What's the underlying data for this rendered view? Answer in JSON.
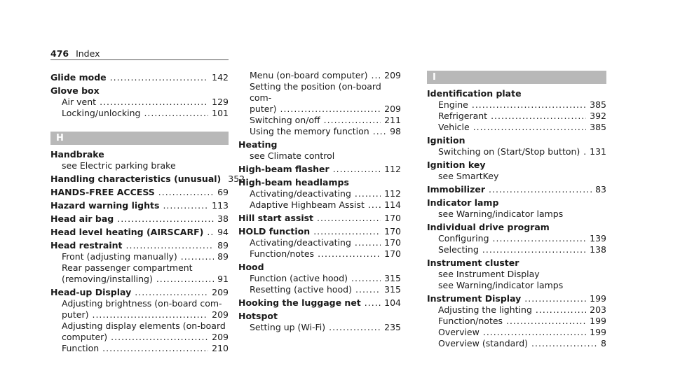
{
  "header": {
    "page_number": "476",
    "label": "Index"
  },
  "col1": {
    "glide_mode": {
      "text": "Glide mode",
      "page": "142"
    },
    "glove_box": {
      "text": "Glove box",
      "subs": [
        {
          "text": "Air vent",
          "page": "129"
        },
        {
          "text": "Locking/unlocking",
          "page": "101"
        }
      ]
    },
    "letter": "H",
    "handbrake": {
      "text": "Handbrake",
      "see": "see Electric parking brake"
    },
    "handling": {
      "text": "Handling characteristics (unusual)",
      "page": "352"
    },
    "handsfree": {
      "text": "HANDS-FREE ACCESS",
      "page": "69"
    },
    "hazard": {
      "text": "Hazard warning lights",
      "page": "113"
    },
    "head_air_bag": {
      "text": "Head air bag",
      "page": "38"
    },
    "head_level": {
      "text": "Head level heating (AIRSCARF)",
      "page": "94"
    },
    "head_restraint": {
      "text": "Head restraint",
      "page": "89",
      "sub1": {
        "text": "Front (adjusting manually)",
        "page": "89"
      },
      "sub2_line1": "Rear passenger compartment",
      "sub2_line2": {
        "text": "(removing/installing)",
        "page": "91"
      }
    },
    "hud": {
      "text": "Head-up Display",
      "page": "209",
      "sub1_line1": "Adjusting brightness (on-board com-",
      "sub1_line2": {
        "text": "puter)",
        "page": "209"
      },
      "sub2_line1": "Adjusting display elements (on-board",
      "sub2_line2": {
        "text": "computer)",
        "page": "209"
      },
      "sub3": {
        "text": "Function",
        "page": "210"
      }
    }
  },
  "col2": {
    "menu": {
      "text": "Menu (on-board computer)",
      "page": "209"
    },
    "setting_pos_line1": "Setting the position (on-board com-",
    "setting_pos_line2": {
      "text": "puter)",
      "page": "209"
    },
    "switching": {
      "text": "Switching on/off",
      "page": "211"
    },
    "memory": {
      "text": "Using the memory function",
      "page": "98"
    },
    "heating": {
      "text": "Heating",
      "see": "see Climate control"
    },
    "high_beam_flasher": {
      "text": "High-beam flasher",
      "page": "112"
    },
    "high_beam_headlamps": {
      "text": "High-beam headlamps",
      "subs": [
        {
          "text": "Activating/deactivating",
          "page": "112"
        },
        {
          "text": "Adaptive Highbeam Assist",
          "page": "114"
        }
      ]
    },
    "hill_start": {
      "text": "Hill start assist",
      "page": "170"
    },
    "hold": {
      "text": "HOLD function",
      "page": "170",
      "subs": [
        {
          "text": "Activating/deactivating",
          "page": "170"
        },
        {
          "text": "Function/notes",
          "page": "170"
        }
      ]
    },
    "hood": {
      "text": "Hood",
      "subs": [
        {
          "text": "Function (active hood)",
          "page": "315"
        },
        {
          "text": "Resetting (active hood)",
          "page": "315"
        }
      ]
    },
    "luggage_net": {
      "text": "Hooking the luggage net",
      "page": "104"
    },
    "hotspot": {
      "text": "Hotspot",
      "subs": [
        {
          "text": "Setting up (Wi-Fi)",
          "page": "235"
        }
      ]
    }
  },
  "col3": {
    "letter": "I",
    "id_plate": {
      "text": "Identification plate",
      "subs": [
        {
          "text": "Engine",
          "page": "385"
        },
        {
          "text": "Refrigerant",
          "page": "392"
        },
        {
          "text": "Vehicle",
          "page": "385"
        }
      ]
    },
    "ignition": {
      "text": "Ignition",
      "subs": [
        {
          "text": "Switching on (Start/Stop button)",
          "page": "131"
        }
      ]
    },
    "ignition_key": {
      "text": "Ignition key",
      "see": "see SmartKey"
    },
    "immobilizer": {
      "text": "Immobilizer",
      "page": "83"
    },
    "indicator_lamp": {
      "text": "Indicator lamp",
      "see": "see Warning/indicator lamps"
    },
    "drive_program": {
      "text": "Individual drive program",
      "subs": [
        {
          "text": "Configuring",
          "page": "139"
        },
        {
          "text": "Selecting",
          "page": "138"
        }
      ]
    },
    "cluster": {
      "text": "Instrument cluster",
      "see1": "see Instrument Display",
      "see2": "see Warning/indicator lamps"
    },
    "instrument_display": {
      "text": "Instrument Display",
      "page": "199",
      "subs": [
        {
          "text": "Adjusting the lighting",
          "page": "203"
        },
        {
          "text": "Function/notes",
          "page": "199"
        },
        {
          "text": "Overview",
          "page": "199"
        },
        {
          "text": "Overview (standard)",
          "page": "8"
        }
      ]
    }
  }
}
